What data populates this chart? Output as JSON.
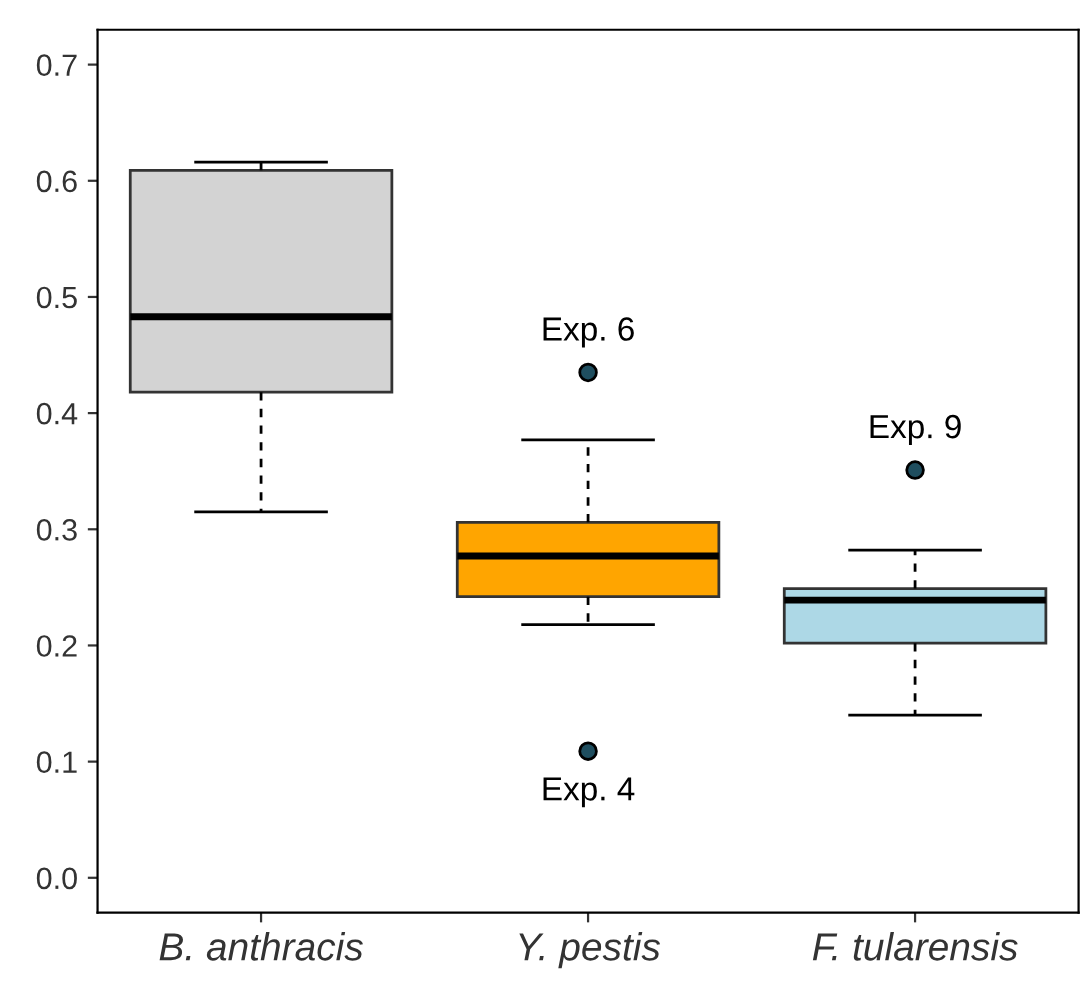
{
  "chart_data": {
    "type": "box",
    "categories": [
      "B. anthracis",
      "Y. pestis",
      "F. tularensis"
    ],
    "boxes": [
      {
        "low": 0.315,
        "q1": 0.418,
        "median": 0.483,
        "q3": 0.609,
        "high": 0.616
      },
      {
        "low": 0.218,
        "q1": 0.242,
        "median": 0.277,
        "q3": 0.306,
        "high": 0.377,
        "outliers": [
          0.435,
          0.109
        ]
      },
      {
        "low": 0.14,
        "q1": 0.202,
        "median": 0.239,
        "q3": 0.249,
        "high": 0.282,
        "outliers": [
          0.351
        ]
      }
    ],
    "colors": [
      "#d3d3d3",
      "#ffa500",
      "#add8e6"
    ],
    "ylim": [
      -0.03,
      0.73
    ],
    "yticks": [
      {
        "value": 0,
        "label": "0.0"
      },
      0.1,
      0.2,
      0.3,
      0.4,
      0.5,
      0.6,
      0.7
    ],
    "grid": false,
    "annotations": [
      "Exp. 6",
      "Exp. 4",
      "Exp. 9"
    ]
  }
}
